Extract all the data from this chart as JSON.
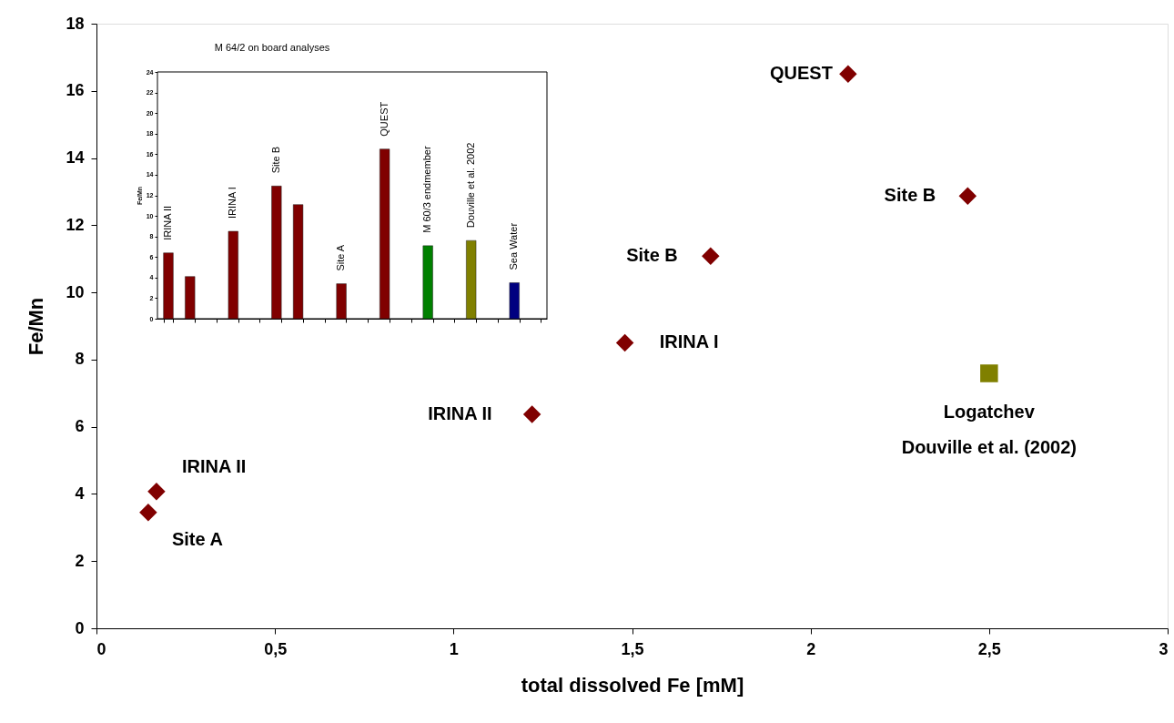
{
  "chart_data": [
    {
      "type": "scatter",
      "xlabel": "total dissolved Fe [mM]",
      "ylabel": "Fe/Mn",
      "series": [
        {
          "color": "#800000",
          "marker": "diamond",
          "x": [
            0.145,
            0.168,
            1.22,
            1.48,
            1.72,
            2.105,
            2.44
          ],
          "values": [
            3.45,
            4.07,
            6.37,
            8.5,
            11.08,
            16.5,
            12.87
          ]
        },
        {
          "color": "#808000",
          "marker": "square",
          "x": [
            2.5
          ],
          "values": [
            7.59
          ]
        }
      ],
      "xlim": [
        0,
        3
      ],
      "ylim": [
        0,
        18
      ],
      "xticks": [
        0,
        {
          "value": 0.5,
          "label": "0,5"
        },
        1,
        {
          "value": 1.5,
          "label": "1,5"
        },
        2,
        {
          "value": 2.5,
          "label": "2,5"
        },
        3
      ],
      "yticks": [
        0,
        2,
        4,
        6,
        8,
        10,
        12,
        14,
        16,
        18
      ],
      "annotations": [
        {
          "text": "Site A",
          "x": 0.145,
          "y": 3.45
        },
        {
          "text": "IRINA II",
          "x": 0.168,
          "y": 4.07
        },
        {
          "text": "IRINA II",
          "x": 1.22,
          "y": 6.37
        },
        {
          "text": "IRINA I",
          "x": 1.48,
          "y": 8.5
        },
        {
          "text": "Site B",
          "x": 1.72,
          "y": 11.08
        },
        {
          "text": "QUEST",
          "x": 2.105,
          "y": 16.5
        },
        {
          "text": "Site B",
          "x": 2.44,
          "y": 12.87
        },
        {
          "text": "Logatchev\nDouville et al. (2002)",
          "x": 2.5,
          "y": 7.59
        }
      ],
      "grid": false
    },
    {
      "type": "bar",
      "ylabel": "Fe/Mn",
      "categories": [
        "IRINA II",
        null,
        null,
        "IRINA I",
        null,
        "Site B",
        null,
        null,
        "Site A",
        null,
        "QUEST",
        null,
        "M 60/3 endmember",
        null,
        "Douville et al. 2002",
        null,
        "Sea Water",
        null
      ],
      "values": [
        6.4,
        4.1,
        null,
        8.5,
        null,
        12.9,
        11.1,
        null,
        3.4,
        null,
        16.5,
        null,
        7.1,
        null,
        7.6,
        null,
        3.5,
        null
      ],
      "colors": [
        "#800000",
        "#800000",
        null,
        "#800000",
        null,
        "#800000",
        "#800000",
        null,
        "#800000",
        null,
        "#800000",
        null,
        "#008000",
        null,
        "#808000",
        null,
        "#000080",
        null
      ],
      "ylim": [
        0,
        24
      ],
      "yticks": [
        0,
        2,
        4,
        6,
        8,
        10,
        12,
        14,
        16,
        18,
        20,
        22,
        24
      ],
      "annotations": [
        "M 64/2 on board analyses"
      ],
      "tick_labels": "y",
      "grid": false
    }
  ]
}
